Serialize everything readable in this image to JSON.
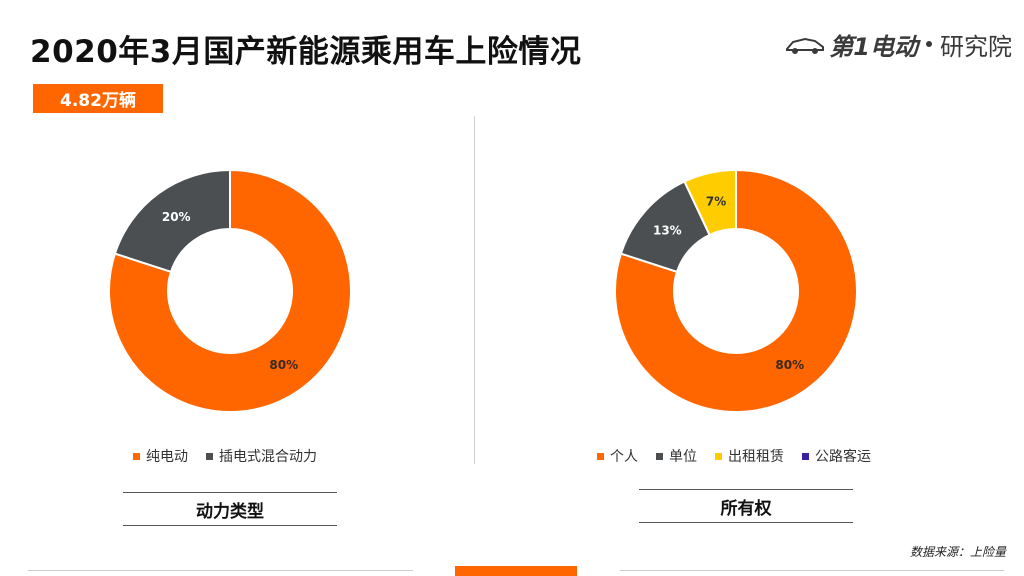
{
  "title": "2020年3月国产新能源乘用车上险情况",
  "logo": {
    "brand": "第1电动",
    "sub": "研究院"
  },
  "badge": "4.82万辆",
  "source": "数据来源：上险量",
  "charts": [
    {
      "caption": "动力类型",
      "chart_data": {
        "type": "pie",
        "donut": true,
        "categories": [
          "纯电动",
          "插电式混合动力"
        ],
        "values": [
          80,
          20
        ],
        "labels": [
          "80%",
          "20%"
        ],
        "colors": [
          "#ff6600",
          "#4b4f52"
        ],
        "legend_position": "bottom"
      }
    },
    {
      "caption": "所有权",
      "chart_data": {
        "type": "pie",
        "donut": true,
        "categories": [
          "个人",
          "单位",
          "出租租赁",
          "公路客运"
        ],
        "values": [
          80,
          13,
          7,
          0
        ],
        "labels": [
          "80%",
          "13%",
          "7%",
          ""
        ],
        "colors": [
          "#ff6600",
          "#4b4f52",
          "#ffcc00",
          "#3b1fa0"
        ],
        "legend_position": "bottom"
      }
    }
  ]
}
